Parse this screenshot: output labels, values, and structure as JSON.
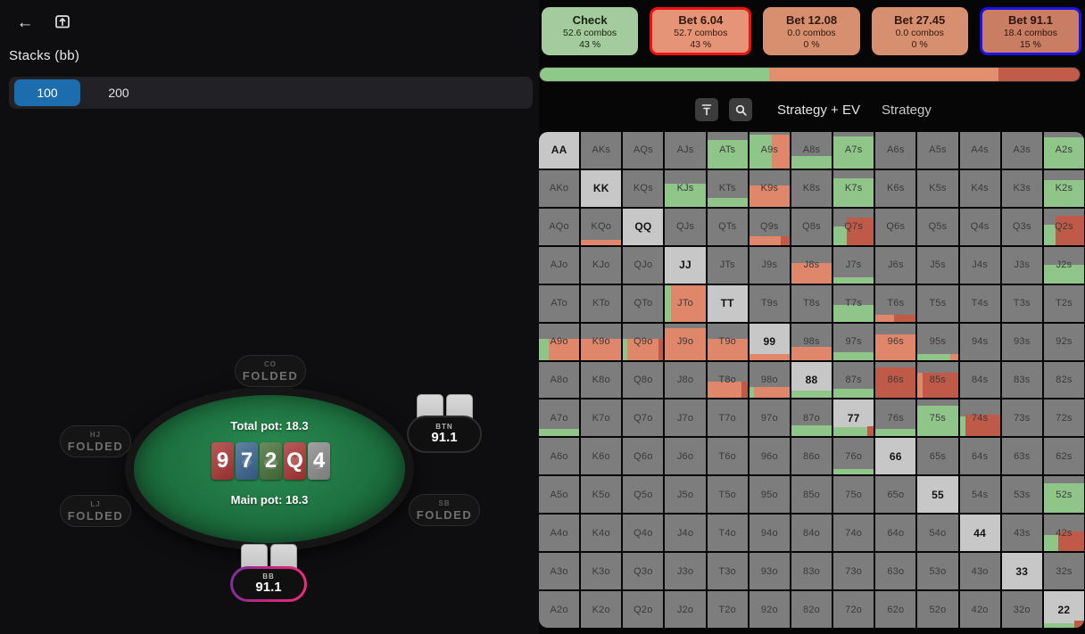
{
  "left_panel": {
    "stacks_label": "Stacks (bb)",
    "stack_options": [
      {
        "label": "100",
        "selected": true
      },
      {
        "label": "200",
        "selected": false
      }
    ]
  },
  "table": {
    "total_pot": "Total pot: 18.3",
    "main_pot": "Main pot: 18.3",
    "board": [
      {
        "rank": "9",
        "suit": "hearts"
      },
      {
        "rank": "7",
        "suit": "diamonds"
      },
      {
        "rank": "2",
        "suit": "clubs"
      },
      {
        "rank": "Q",
        "suit": "hearts"
      },
      {
        "rank": "4",
        "suit": "spades"
      }
    ],
    "seats": [
      {
        "position": "CO",
        "status": "FOLDED"
      },
      {
        "position": "HJ",
        "status": "FOLDED"
      },
      {
        "position": "LJ",
        "status": "FOLDED"
      },
      {
        "position": "BTN",
        "stack": "91.1"
      },
      {
        "position": "SB",
        "status": "FOLDED"
      },
      {
        "position": "BB",
        "stack": "91.1"
      }
    ]
  },
  "actions": [
    {
      "label": "Check",
      "combos": "52.6 combos",
      "freq": "43 %",
      "bg": "#a4cb9d",
      "border": null,
      "text": "#17230f"
    },
    {
      "label": "Bet 6.04",
      "combos": "52.7 combos",
      "freq": "43 %",
      "bg": "#e69478",
      "border": "#f01111",
      "text": "#33180e"
    },
    {
      "label": "Bet 12.08",
      "combos": "0.0 combos",
      "freq": "0 %",
      "bg": "#d69070",
      "border": null,
      "text": "#33180e"
    },
    {
      "label": "Bet 27.45",
      "combos": "0.0 combos",
      "freq": "0 %",
      "bg": "#d69070",
      "border": null,
      "text": "#33180e"
    },
    {
      "label": "Bet 91.1",
      "combos": "18.4 combos",
      "freq": "15 %",
      "bg": "#c97d62",
      "border": "#1d13e8",
      "text": "#2d130b"
    }
  ],
  "strategy_bar": [
    {
      "color": "#8fc98a",
      "pct": 42.5
    },
    {
      "color": "#e28f70",
      "pct": 42.5
    },
    {
      "color": "#c05c49",
      "pct": 15
    }
  ],
  "toolbar": {
    "tabs": [
      "Strategy + EV",
      "Strategy"
    ]
  },
  "colors": {
    "strategy": {
      "g": "#90c58a",
      "s": "#e0876b",
      "r": "#bf5a48"
    },
    "suits": {
      "hearts": "#a93535",
      "diamonds": "#3a648e",
      "clubs": "#49713a",
      "spades": "#8c8c8c"
    },
    "cell_bg": "#7d7d7d",
    "pair_bg": "#c7c7c7",
    "stack_selected": "#1b6dad"
  },
  "matrix": {
    "rows": [
      [
        {
          "l": "AA",
          "p": 1
        },
        {
          "l": "AKs"
        },
        {
          "l": "AQs"
        },
        {
          "l": "AJs"
        },
        {
          "l": "ATs",
          "f": [
            [
              "g",
              100,
              78
            ]
          ]
        },
        {
          "l": "A9s",
          "f": [
            [
              "g",
              55,
              92
            ],
            [
              "s",
              45,
              92
            ]
          ]
        },
        {
          "l": "A8s",
          "f": [
            [
              "g",
              100,
              35
            ]
          ]
        },
        {
          "l": "A7s",
          "f": [
            [
              "g",
              100,
              88
            ]
          ]
        },
        {
          "l": "A6s"
        },
        {
          "l": "A5s"
        },
        {
          "l": "A4s"
        },
        {
          "l": "A3s"
        },
        {
          "l": "A2s",
          "f": [
            [
              "g",
              100,
              85
            ]
          ]
        }
      ],
      [
        {
          "l": "AKo"
        },
        {
          "l": "KK",
          "p": 1
        },
        {
          "l": "KQs"
        },
        {
          "l": "KJs",
          "f": [
            [
              "g",
              100,
              62
            ]
          ]
        },
        {
          "l": "KTs",
          "f": [
            [
              "g",
              100,
              25
            ]
          ]
        },
        {
          "l": "K9s",
          "f": [
            [
              "s",
              100,
              58
            ]
          ]
        },
        {
          "l": "K8s"
        },
        {
          "l": "K7s",
          "f": [
            [
              "g",
              100,
              78
            ]
          ]
        },
        {
          "l": "K6s"
        },
        {
          "l": "K5s"
        },
        {
          "l": "K4s"
        },
        {
          "l": "K3s"
        },
        {
          "l": "K2s",
          "f": [
            [
              "g",
              100,
              72
            ]
          ]
        }
      ],
      [
        {
          "l": "AQo"
        },
        {
          "l": "KQo",
          "f": [
            [
              "s",
              100,
              13
            ]
          ]
        },
        {
          "l": "QQ",
          "p": 1
        },
        {
          "l": "QJs"
        },
        {
          "l": "QTs"
        },
        {
          "l": "Q9s",
          "f": [
            [
              "s",
              78,
              25
            ],
            [
              "r",
              22,
              25
            ]
          ]
        },
        {
          "l": "Q8s"
        },
        {
          "l": "Q7s",
          "f": [
            [
              "g",
              33,
              52
            ],
            [
              "r",
              67,
              75
            ]
          ]
        },
        {
          "l": "Q6s"
        },
        {
          "l": "Q5s"
        },
        {
          "l": "Q4s"
        },
        {
          "l": "Q3s"
        },
        {
          "l": "Q2s",
          "f": [
            [
              "g",
              30,
              55
            ],
            [
              "r",
              70,
              80
            ]
          ]
        }
      ],
      [
        {
          "l": "AJo"
        },
        {
          "l": "KJo"
        },
        {
          "l": "QJo"
        },
        {
          "l": "JJ",
          "p": 1
        },
        {
          "l": "JTs"
        },
        {
          "l": "J9s"
        },
        {
          "l": "J8s",
          "f": [
            [
              "s",
              100,
              55
            ]
          ]
        },
        {
          "l": "J7s",
          "f": [
            [
              "g",
              100,
              16
            ]
          ]
        },
        {
          "l": "J6s"
        },
        {
          "l": "J5s"
        },
        {
          "l": "J4s"
        },
        {
          "l": "J3s"
        },
        {
          "l": "J2s",
          "f": [
            [
              "g",
              100,
              50
            ]
          ]
        }
      ],
      [
        {
          "l": "ATo"
        },
        {
          "l": "KTo"
        },
        {
          "l": "QTo"
        },
        {
          "l": "JTo",
          "f": [
            [
              "g",
              15,
              100
            ],
            [
              "s",
              85,
              100
            ]
          ]
        },
        {
          "l": "TT",
          "p": 1
        },
        {
          "l": "T9s"
        },
        {
          "l": "T8s"
        },
        {
          "l": "T7s",
          "f": [
            [
              "g",
              100,
              45
            ]
          ]
        },
        {
          "l": "T6s",
          "f": [
            [
              "s",
              45,
              18
            ],
            [
              "r",
              55,
              18
            ]
          ]
        },
        {
          "l": "T5s"
        },
        {
          "l": "T4s"
        },
        {
          "l": "T3s"
        },
        {
          "l": "T2s"
        }
      ],
      [
        {
          "l": "A9o",
          "f": [
            [
              "g",
              25,
              58
            ],
            [
              "s",
              75,
              58
            ]
          ]
        },
        {
          "l": "K9o",
          "f": [
            [
              "s",
              100,
              58
            ]
          ]
        },
        {
          "l": "Q9o",
          "f": [
            [
              "g",
              10,
              58
            ],
            [
              "s",
              78,
              58
            ],
            [
              "r",
              12,
              58
            ]
          ]
        },
        {
          "l": "J9o",
          "f": [
            [
              "s",
              100,
              88
            ]
          ]
        },
        {
          "l": "T9o",
          "f": [
            [
              "s",
              100,
              58
            ]
          ]
        },
        {
          "l": "99",
          "p": 1,
          "f": [
            [
              "s",
              100,
              15
            ]
          ]
        },
        {
          "l": "98s",
          "f": [
            [
              "s",
              100,
              35
            ]
          ]
        },
        {
          "l": "97s",
          "f": [
            [
              "g",
              100,
              20
            ]
          ]
        },
        {
          "l": "96s",
          "f": [
            [
              "s",
              100,
              70
            ]
          ]
        },
        {
          "l": "95s",
          "f": [
            [
              "g",
              82,
              15
            ],
            [
              "s",
              18,
              15
            ]
          ]
        },
        {
          "l": "94s"
        },
        {
          "l": "93s"
        },
        {
          "l": "92s"
        }
      ],
      [
        {
          "l": "A8o"
        },
        {
          "l": "K8o"
        },
        {
          "l": "Q8o"
        },
        {
          "l": "J8o"
        },
        {
          "l": "T8o",
          "f": [
            [
              "s",
              85,
              45
            ],
            [
              "r",
              15,
              45
            ]
          ]
        },
        {
          "l": "98o",
          "f": [
            [
              "g",
              12,
              30
            ],
            [
              "s",
              88,
              30
            ]
          ]
        },
        {
          "l": "88",
          "p": 1,
          "f": [
            [
              "g",
              100,
              20
            ]
          ]
        },
        {
          "l": "87s",
          "f": [
            [
              "g",
              100,
              25
            ]
          ]
        },
        {
          "l": "86s",
          "f": [
            [
              "r",
              100,
              85
            ]
          ]
        },
        {
          "l": "85s",
          "f": [
            [
              "s",
              12,
              70
            ],
            [
              "r",
              88,
              70
            ]
          ]
        },
        {
          "l": "84s"
        },
        {
          "l": "83s"
        },
        {
          "l": "82s"
        }
      ],
      [
        {
          "l": "A7o",
          "f": [
            [
              "g",
              100,
              20
            ]
          ]
        },
        {
          "l": "K7o"
        },
        {
          "l": "Q7o"
        },
        {
          "l": "J7o"
        },
        {
          "l": "T7o"
        },
        {
          "l": "97o"
        },
        {
          "l": "87o",
          "f": [
            [
              "g",
              100,
              30
            ]
          ]
        },
        {
          "l": "77",
          "p": 1,
          "f": [
            [
              "g",
              85,
              25
            ],
            [
              "r",
              15,
              28
            ]
          ]
        },
        {
          "l": "76s",
          "f": [
            [
              "g",
              100,
              20
            ]
          ]
        },
        {
          "l": "75s",
          "f": [
            [
              "g",
              100,
              85
            ]
          ]
        },
        {
          "l": "74s",
          "f": [
            [
              "g",
              15,
              55
            ],
            [
              "r",
              85,
              60
            ]
          ]
        },
        {
          "l": "73s"
        },
        {
          "l": "72s"
        }
      ],
      [
        {
          "l": "A6o"
        },
        {
          "l": "K6o"
        },
        {
          "l": "Q6o"
        },
        {
          "l": "J6o"
        },
        {
          "l": "T6o"
        },
        {
          "l": "96o"
        },
        {
          "l": "86o"
        },
        {
          "l": "76o",
          "f": [
            [
              "g",
              100,
              15
            ]
          ]
        },
        {
          "l": "66",
          "p": 1
        },
        {
          "l": "65s"
        },
        {
          "l": "64s"
        },
        {
          "l": "63s"
        },
        {
          "l": "62s"
        }
      ],
      [
        {
          "l": "A5o"
        },
        {
          "l": "K5o"
        },
        {
          "l": "Q5o"
        },
        {
          "l": "J5o"
        },
        {
          "l": "T5o"
        },
        {
          "l": "95o"
        },
        {
          "l": "85o"
        },
        {
          "l": "75o"
        },
        {
          "l": "65o"
        },
        {
          "l": "55",
          "p": 1
        },
        {
          "l": "54s"
        },
        {
          "l": "53s"
        },
        {
          "l": "52s",
          "f": [
            [
              "g",
              100,
              80
            ]
          ]
        }
      ],
      [
        {
          "l": "A4o"
        },
        {
          "l": "K4o"
        },
        {
          "l": "Q4o"
        },
        {
          "l": "J4o"
        },
        {
          "l": "T4o"
        },
        {
          "l": "94o"
        },
        {
          "l": "84o"
        },
        {
          "l": "74o"
        },
        {
          "l": "64o"
        },
        {
          "l": "54o"
        },
        {
          "l": "44",
          "p": 1
        },
        {
          "l": "43s"
        },
        {
          "l": "42s",
          "f": [
            [
              "g",
              35,
              45
            ],
            [
              "r",
              65,
              55
            ]
          ]
        }
      ],
      [
        {
          "l": "A3o"
        },
        {
          "l": "K3o"
        },
        {
          "l": "Q3o"
        },
        {
          "l": "J3o"
        },
        {
          "l": "T3o"
        },
        {
          "l": "93o"
        },
        {
          "l": "83o"
        },
        {
          "l": "73o"
        },
        {
          "l": "63o"
        },
        {
          "l": "53o"
        },
        {
          "l": "43o"
        },
        {
          "l": "33",
          "p": 1
        },
        {
          "l": "32s"
        }
      ],
      [
        {
          "l": "A2o"
        },
        {
          "l": "K2o"
        },
        {
          "l": "Q2o"
        },
        {
          "l": "J2o"
        },
        {
          "l": "T2o"
        },
        {
          "l": "92o"
        },
        {
          "l": "82o"
        },
        {
          "l": "72o"
        },
        {
          "l": "62o"
        },
        {
          "l": "52o"
        },
        {
          "l": "42o"
        },
        {
          "l": "32o"
        },
        {
          "l": "22",
          "p": 1,
          "f": [
            [
              "g",
              75,
              12
            ],
            [
              "r",
              25,
              20
            ]
          ]
        }
      ]
    ]
  }
}
